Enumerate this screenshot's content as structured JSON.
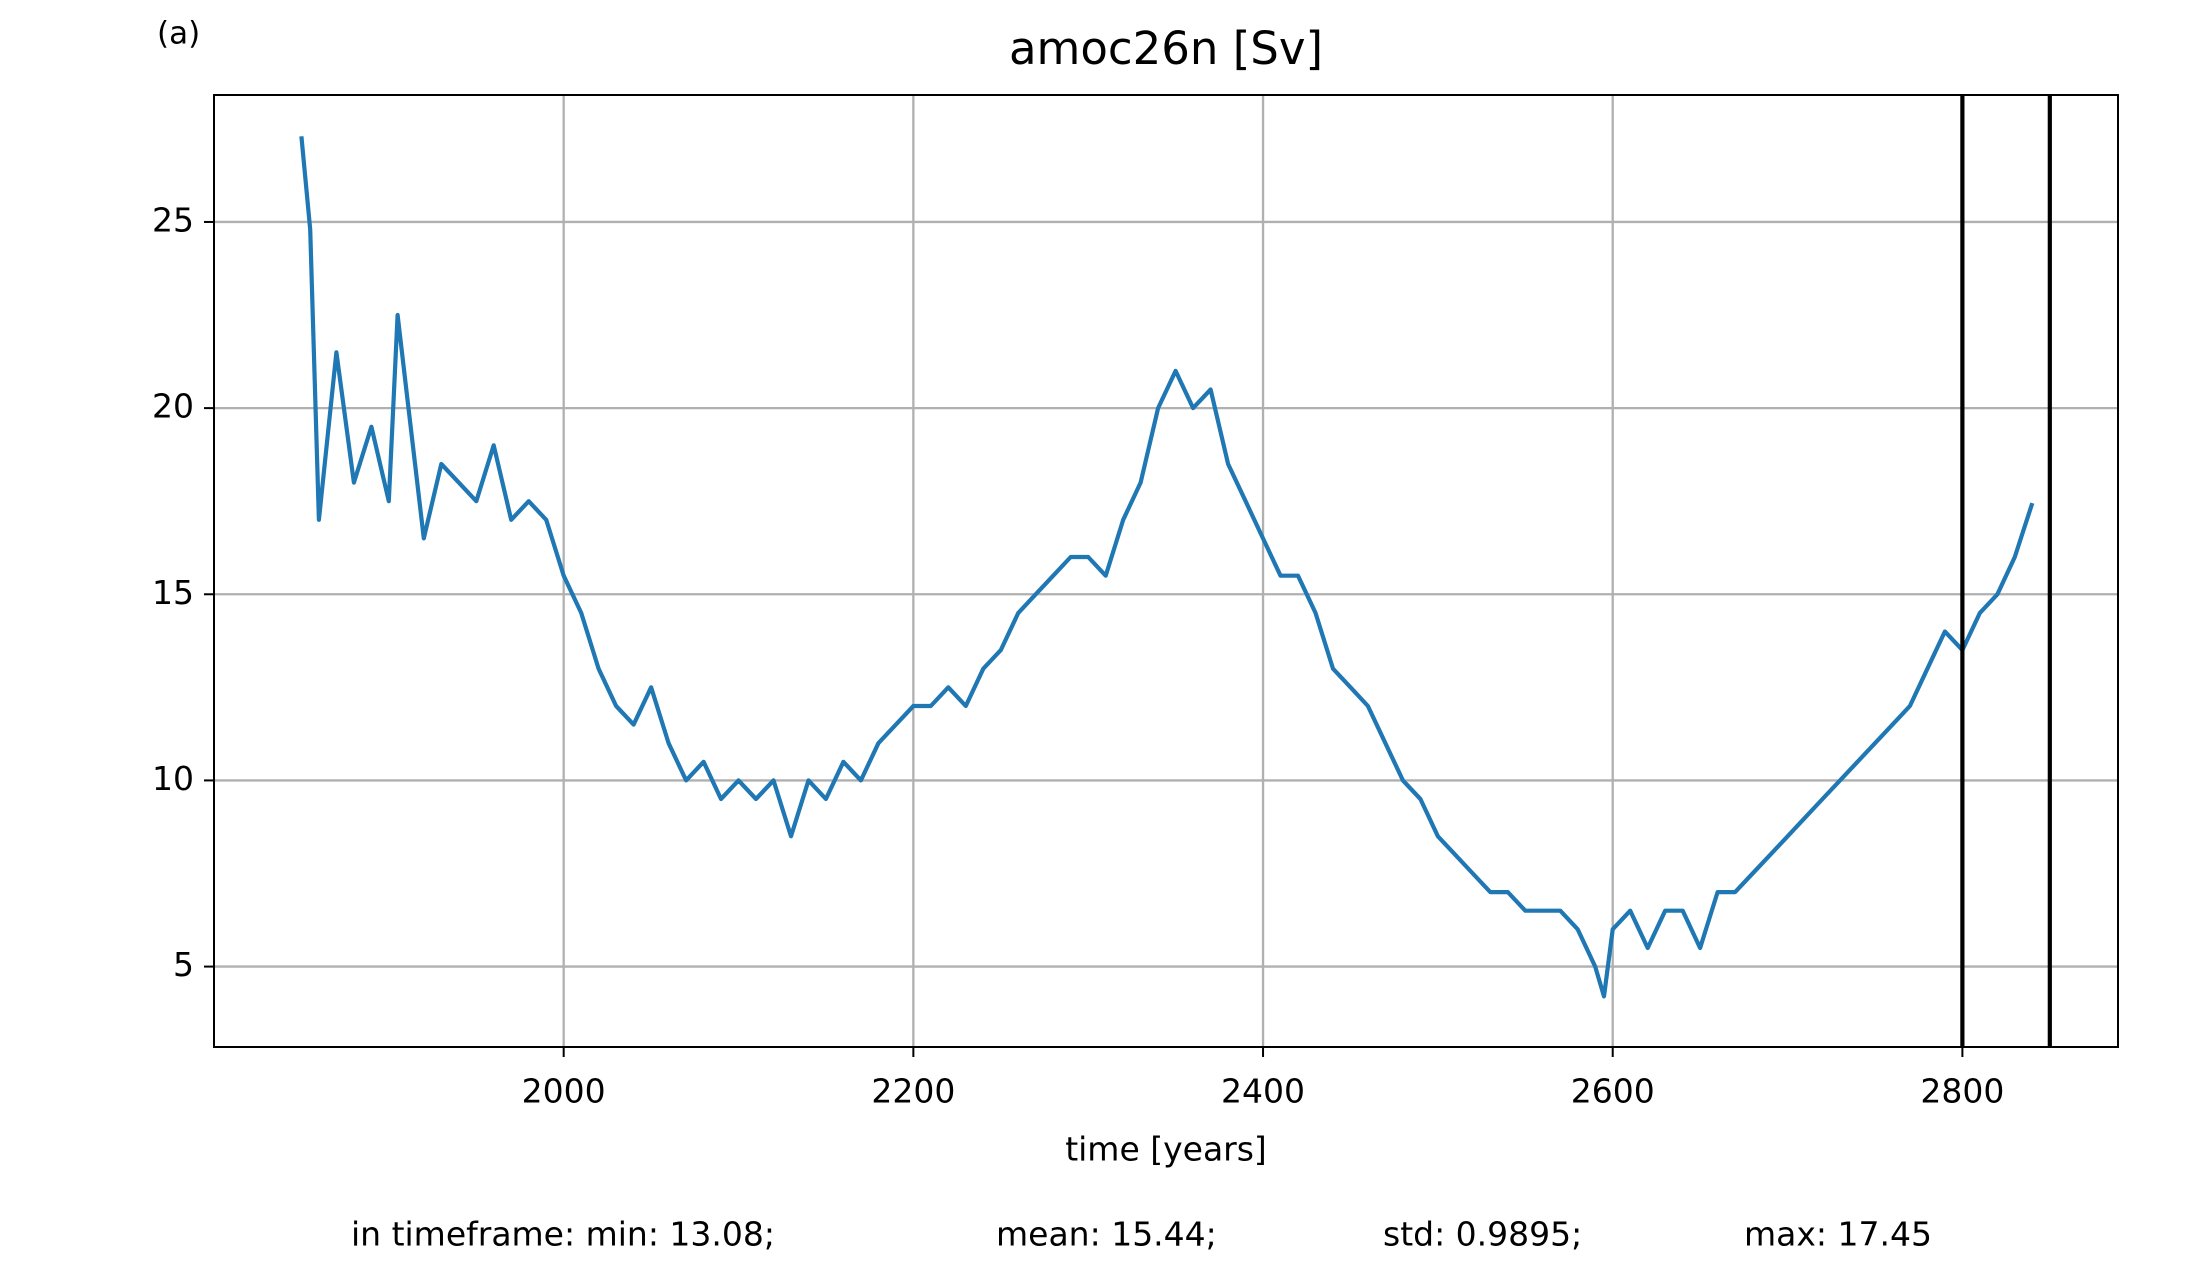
{
  "chart_data": {
    "type": "line",
    "panel_label": "(a)",
    "title": "amoc26n [Sv]",
    "x_label": "time [years]",
    "x": [
      1850,
      1855,
      1860,
      1870,
      1880,
      1890,
      1900,
      1905,
      1910,
      1920,
      1930,
      1940,
      1950,
      1960,
      1970,
      1980,
      1990,
      2000,
      2010,
      2020,
      2030,
      2040,
      2050,
      2060,
      2070,
      2080,
      2090,
      2100,
      2110,
      2120,
      2130,
      2140,
      2150,
      2160,
      2170,
      2180,
      2190,
      2200,
      2210,
      2220,
      2230,
      2240,
      2250,
      2260,
      2270,
      2280,
      2290,
      2300,
      2310,
      2320,
      2330,
      2340,
      2350,
      2360,
      2370,
      2380,
      2390,
      2400,
      2410,
      2420,
      2430,
      2440,
      2450,
      2460,
      2470,
      2480,
      2490,
      2500,
      2510,
      2520,
      2530,
      2540,
      2550,
      2560,
      2570,
      2580,
      2590,
      2595,
      2600,
      2610,
      2620,
      2630,
      2640,
      2650,
      2660,
      2670,
      2680,
      2690,
      2700,
      2710,
      2720,
      2730,
      2740,
      2750,
      2760,
      2770,
      2780,
      2790,
      2800,
      2810,
      2820,
      2830,
      2840
    ],
    "values": [
      27.3,
      24.8,
      17,
      21.5,
      18,
      19.5,
      17.5,
      22.5,
      20.5,
      16.5,
      18.5,
      18,
      17.5,
      19,
      17,
      17.5,
      17,
      15.5,
      14.5,
      13,
      12,
      11.5,
      12.5,
      11,
      10,
      10.5,
      9.5,
      10,
      9.5,
      10,
      8.5,
      10,
      9.5,
      10.5,
      10,
      11,
      11.5,
      12,
      12,
      12.5,
      12,
      13,
      13.5,
      14.5,
      15,
      15.5,
      16,
      16,
      15.5,
      17,
      18,
      20,
      21,
      20,
      20.5,
      18.5,
      17.5,
      16.5,
      15.5,
      15.5,
      14.5,
      13,
      12.5,
      12,
      11,
      10,
      9.5,
      8.5,
      8,
      7.5,
      7,
      7,
      6.5,
      6.5,
      6.5,
      6,
      5,
      4.2,
      6,
      6.5,
      5.5,
      6.5,
      6.5,
      5.5,
      7,
      7,
      7.5,
      8,
      8.5,
      9,
      9.5,
      10,
      10.5,
      11,
      11.5,
      12,
      13,
      14,
      13.5,
      14.5,
      15,
      16,
      17.45
    ],
    "color": "#1f77b4",
    "vlines": [
      2800,
      2850
    ],
    "xlim": [
      1800,
      2889
    ],
    "ylim": [
      2.84,
      28.41
    ],
    "xticks": [
      2000,
      2200,
      2400,
      2600,
      2800
    ],
    "yticks": [
      5,
      10,
      15,
      20,
      25
    ],
    "grid": true,
    "footer": [
      "in timeframe: min: 13.08;",
      "mean: 15.44;",
      "std: 0.9895;",
      "max: 17.45"
    ]
  }
}
